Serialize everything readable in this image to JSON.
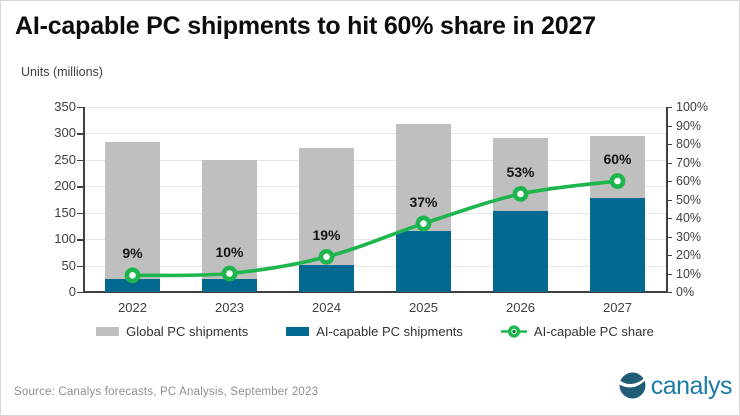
{
  "title": "AI-capable PC shipments to hit 60% share in 2027",
  "y_axis_title": "Units (millions)",
  "source": "Source: Canalys forecasts, PC Analysis, September 2023",
  "logo": {
    "text": "canalys",
    "mark_color": "#215c77",
    "text_color": "#1c7aa6"
  },
  "colors": {
    "global_bar": "#bfbfbf",
    "ai_bar": "#046990",
    "share_line": "#1db54d",
    "axis": "#404040",
    "grid": "#e6e6e6",
    "title_text": "#0d0d0d",
    "source_text": "#8f8f8f"
  },
  "chart_data": {
    "type": "bar",
    "subtype": "bar+line combo, dual axis",
    "categories": [
      "2022",
      "2023",
      "2024",
      "2025",
      "2026",
      "2027"
    ],
    "series": [
      {
        "name": "Global PC shipments",
        "type": "bar",
        "axis": "left",
        "color": "#bfbfbf",
        "values": [
          283,
          250,
          273,
          318,
          292,
          295
        ]
      },
      {
        "name": "AI-capable PC shipments",
        "type": "bar",
        "axis": "left",
        "color": "#046990",
        "values": [
          25,
          25,
          52,
          115,
          153,
          177
        ]
      },
      {
        "name": "AI-capable PC share",
        "type": "line",
        "axis": "right",
        "color": "#1db54d",
        "values": [
          9,
          10,
          19,
          37,
          53,
          60
        ],
        "point_labels": [
          "9%",
          "10%",
          "19%",
          "37%",
          "53%",
          "60%"
        ]
      }
    ],
    "left_axis": {
      "min": 0,
      "max": 350,
      "step": 50,
      "ticks": [
        "0",
        "50",
        "100",
        "150",
        "200",
        "250",
        "300",
        "350"
      ]
    },
    "right_axis": {
      "min": 0,
      "max": 100,
      "step": 10,
      "ticks": [
        "0%",
        "10%",
        "20%",
        "30%",
        "40%",
        "50%",
        "60%",
        "70%",
        "80%",
        "90%",
        "100%"
      ]
    },
    "grid": true,
    "legend_position": "bottom"
  }
}
